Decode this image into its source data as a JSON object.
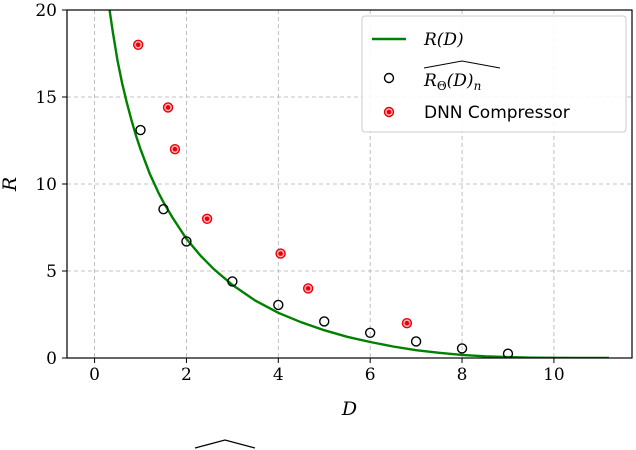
{
  "chart_data": {
    "type": "scatter",
    "xlabel": "D",
    "ylabel": "R",
    "xlim": [
      -0.6,
      11.7
    ],
    "ylim": [
      0,
      20
    ],
    "xticks": [
      0,
      2,
      4,
      6,
      8,
      10
    ],
    "yticks": [
      0,
      5,
      10,
      15,
      20
    ],
    "grid": true,
    "legend_position": "top-right",
    "series": [
      {
        "name": "R(D)",
        "kind": "line",
        "color": "#008000",
        "x": [
          0.3,
          0.35,
          0.4,
          0.5,
          0.6,
          0.7,
          0.8,
          0.9,
          1.0,
          1.2,
          1.4,
          1.5,
          1.7,
          2.0,
          2.3,
          2.6,
          3.0,
          3.5,
          4.0,
          4.5,
          5.0,
          5.5,
          6.0,
          6.5,
          7.0,
          7.5,
          8.0,
          8.5,
          9.0,
          9.5,
          10.0,
          10.5,
          11.2
        ],
        "y": [
          20.5,
          19.6,
          18.7,
          17.1,
          15.8,
          14.7,
          13.7,
          12.8,
          12.0,
          10.6,
          9.45,
          8.95,
          8.05,
          6.85,
          5.9,
          5.1,
          4.2,
          3.3,
          2.6,
          2.05,
          1.6,
          1.22,
          0.92,
          0.66,
          0.45,
          0.3,
          0.18,
          0.1,
          0.05,
          0.02,
          0.01,
          0.0,
          0.0
        ]
      },
      {
        "name": "\\widehat{R_\\Theta(D)_n}",
        "label_main": "R",
        "label_sub": "Θ",
        "label_tail": "(D)",
        "label_end": "n",
        "kind": "scatter",
        "marker": "open-circle",
        "color": "#000000",
        "x": [
          1.0,
          1.5,
          2.0,
          3.0,
          4.0,
          5.0,
          6.0,
          7.0,
          8.0,
          9.0
        ],
        "y": [
          13.1,
          8.55,
          6.7,
          4.4,
          3.05,
          2.1,
          1.45,
          0.95,
          0.55,
          0.25
        ]
      },
      {
        "name": "DNN Compressor",
        "kind": "scatter",
        "marker": "red-dot",
        "color": "#e8000b",
        "x": [
          0.95,
          1.6,
          1.75,
          2.45,
          4.05,
          4.65,
          6.8
        ],
        "y": [
          18.0,
          14.4,
          12.0,
          8.0,
          6.0,
          4.0,
          2.0
        ]
      }
    ]
  }
}
